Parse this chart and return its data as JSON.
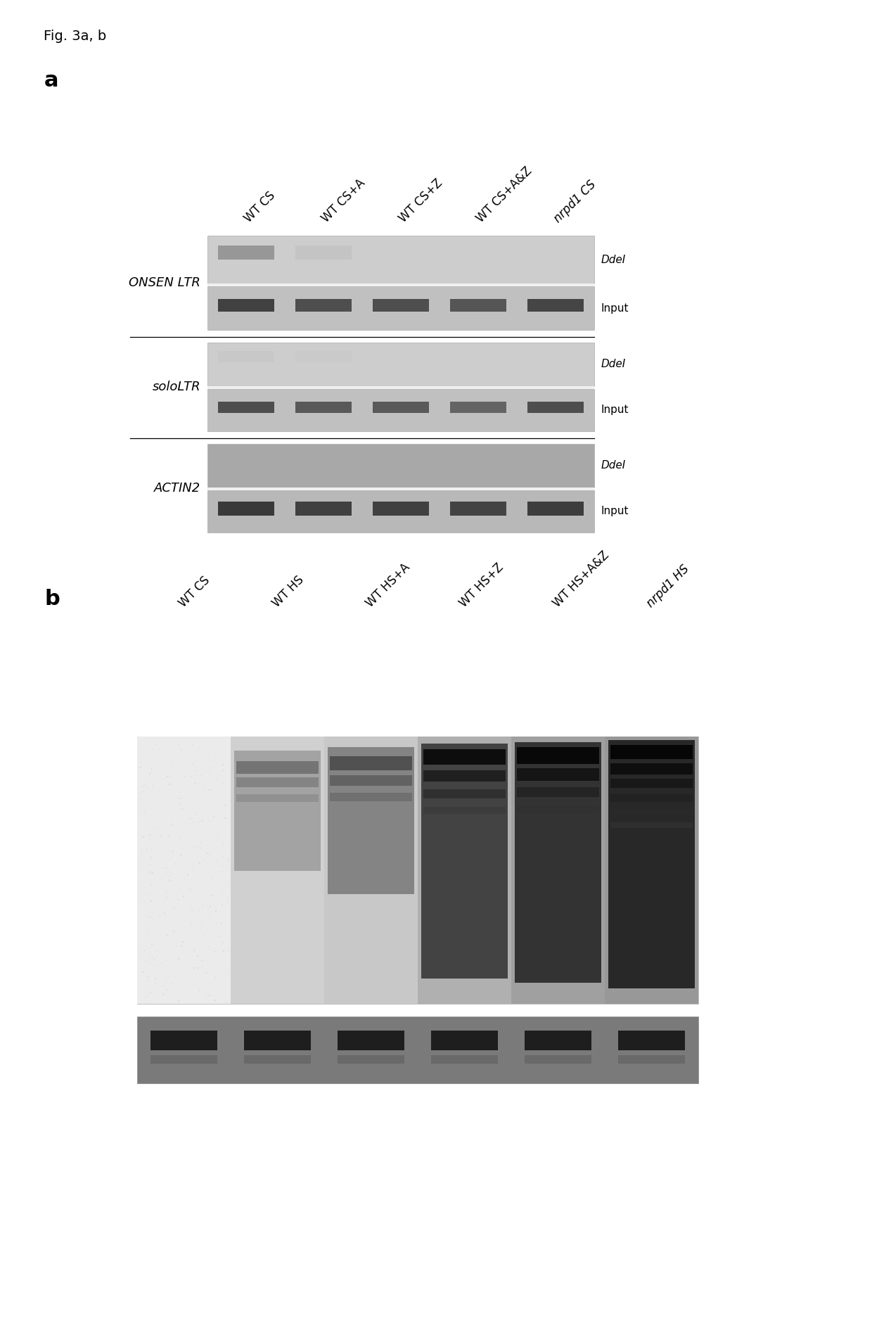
{
  "fig_label": "Fig. 3a, b",
  "panel_a_label": "a",
  "panel_b_label": "b",
  "background_color": "#ffffff",
  "panel_a": {
    "col_labels": [
      "WT CS",
      "WT CS+A",
      "WT CS+Z",
      "WT CS+A&Z",
      "nrpd1 CS"
    ],
    "groups": [
      {
        "name": "ONSEN LTR",
        "italic": true
      },
      {
        "name": "soloLTR",
        "italic": true
      },
      {
        "name": "ACTIN2",
        "italic": true
      }
    ]
  },
  "panel_b": {
    "col_labels": [
      "WT CS",
      "WT HS",
      "WT HS+A",
      "WT HS+Z",
      "WT HS+A&Z",
      "nrpd1 HS"
    ]
  }
}
